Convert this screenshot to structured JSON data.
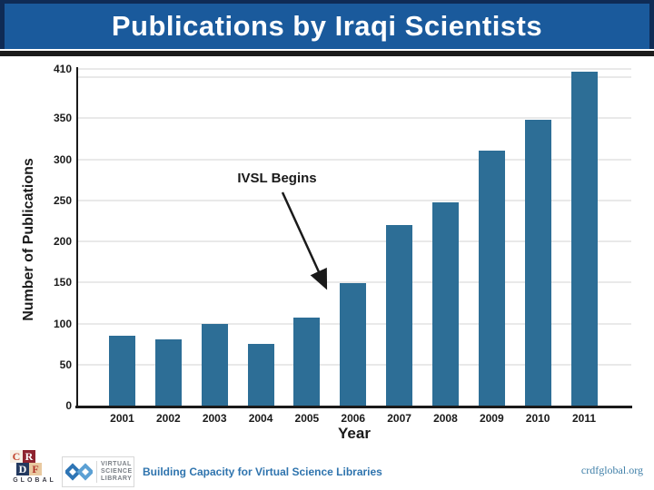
{
  "header": {
    "title": "Publications by Iraqi Scientists"
  },
  "chart_data": {
    "type": "bar",
    "title": "",
    "xlabel": "Year",
    "ylabel": "Number of Publications",
    "categories": [
      "2001",
      "2002",
      "2003",
      "2004",
      "2005",
      "2006",
      "2007",
      "2008",
      "2009",
      "2010",
      "2011"
    ],
    "values": [
      85,
      81,
      99,
      75,
      107,
      149,
      220,
      248,
      311,
      348,
      407
    ],
    "ylim": [
      0,
      410
    ],
    "y_ticks": [
      0,
      50,
      100,
      150,
      200,
      250,
      300,
      350,
      410
    ],
    "gridline_values": [
      50,
      100,
      150,
      200,
      250,
      300,
      350,
      400,
      410
    ],
    "grid": "horizontal",
    "legend": "none",
    "bar_color": "#2d6e96",
    "annotation": {
      "text": "IVSL Begins",
      "points_to_category": "2006"
    }
  },
  "footer": {
    "crdf_logo": {
      "letters": [
        "C",
        "R",
        "D",
        "F"
      ],
      "word": "GLOBAL"
    },
    "vsl_logo": {
      "lines": [
        "VIRTUAL",
        "SCIENCE",
        "LIBRARY"
      ]
    },
    "tagline": "Building Capacity for Virtual Science Libraries",
    "url": "crdfglobal.org"
  },
  "colors": {
    "header_blue": "#1a5a9c",
    "header_border_navy": "#0f2b55",
    "bar_fill": "#2d6e96",
    "tagline_blue": "#2f74ae",
    "url_blue": "#3f7fa8"
  }
}
